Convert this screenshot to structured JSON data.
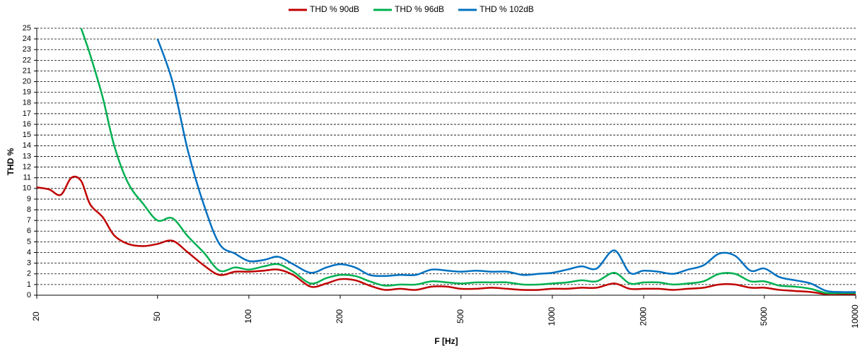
{
  "chart_data": {
    "type": "line",
    "x_label": "F [Hz]",
    "y_label": "THD %",
    "xlog": true,
    "grid": true,
    "legend": "top",
    "xlim": [
      20,
      10000
    ],
    "ylim": [
      0,
      25
    ],
    "xticks": [
      20,
      50,
      100,
      200,
      500,
      1000,
      2000,
      5000,
      10000
    ],
    "yticks": [
      0,
      1,
      2,
      3,
      4,
      5,
      6,
      7,
      8,
      9,
      10,
      11,
      12,
      13,
      14,
      15,
      16,
      17,
      18,
      19,
      20,
      21,
      22,
      23,
      24,
      25
    ],
    "x": [
      20,
      22,
      24,
      26,
      28,
      30,
      33,
      36,
      40,
      45,
      50,
      56,
      63,
      71,
      80,
      90,
      100,
      112,
      125,
      140,
      160,
      180,
      200,
      224,
      250,
      280,
      315,
      355,
      400,
      450,
      500,
      560,
      630,
      710,
      800,
      900,
      1000,
      1120,
      1250,
      1400,
      1600,
      1800,
      2000,
      2240,
      2500,
      2800,
      3150,
      3550,
      4000,
      4500,
      5000,
      5600,
      6300,
      7100,
      8000,
      9000,
      10000
    ],
    "series": [
      {
        "name": "THD % 90dB",
        "color": "#c00000",
        "values": [
          10.1,
          9.9,
          9.4,
          11.0,
          10.7,
          8.5,
          7.3,
          5.6,
          4.8,
          4.6,
          4.8,
          5.1,
          4.0,
          2.8,
          1.9,
          2.2,
          2.2,
          2.3,
          2.4,
          1.9,
          0.8,
          1.1,
          1.5,
          1.4,
          0.9,
          0.5,
          0.6,
          0.5,
          0.8,
          0.8,
          0.6,
          0.6,
          0.7,
          0.6,
          0.5,
          0.5,
          0.6,
          0.6,
          0.7,
          0.7,
          1.1,
          0.6,
          0.6,
          0.6,
          0.5,
          0.6,
          0.7,
          1.0,
          1.0,
          0.7,
          0.7,
          0.5,
          0.4,
          0.3,
          0.1,
          0.1,
          0.1
        ]
      },
      {
        "name": "THD % 96dB",
        "color": "#00b050",
        "values": [
          null,
          null,
          null,
          null,
          25,
          22.5,
          18.5,
          14,
          10.5,
          8.5,
          7,
          7.2,
          5.5,
          4,
          2.3,
          2.6,
          2.4,
          2.7,
          2.9,
          2.2,
          1.1,
          1.6,
          1.9,
          1.8,
          1.3,
          0.9,
          1.0,
          1.0,
          1.3,
          1.2,
          1.1,
          1.2,
          1.2,
          1.2,
          1.0,
          1.0,
          1.1,
          1.2,
          1.4,
          1.3,
          2.1,
          1.1,
          1.2,
          1.2,
          1.0,
          1.1,
          1.3,
          2.0,
          2.0,
          1.3,
          1.3,
          0.9,
          0.8,
          0.6,
          0.2,
          0.2,
          0.2
        ]
      },
      {
        "name": "THD % 102dB",
        "color": "#0070c0",
        "values": [
          null,
          null,
          null,
          null,
          null,
          null,
          null,
          null,
          null,
          null,
          24,
          20,
          13.5,
          8.5,
          4.8,
          3.9,
          3.2,
          3.3,
          3.6,
          2.9,
          2.1,
          2.6,
          2.9,
          2.6,
          1.9,
          1.8,
          1.9,
          1.9,
          2.4,
          2.3,
          2.2,
          2.3,
          2.2,
          2.2,
          1.9,
          2.0,
          2.1,
          2.4,
          2.7,
          2.5,
          4.2,
          2.1,
          2.3,
          2.2,
          2.0,
          2.4,
          2.8,
          3.9,
          3.7,
          2.3,
          2.5,
          1.7,
          1.4,
          1.1,
          0.4,
          0.3,
          0.3
        ]
      }
    ]
  }
}
